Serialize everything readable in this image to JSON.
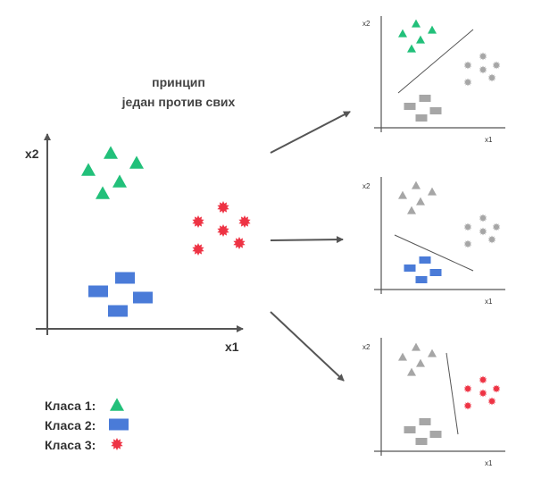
{
  "title": {
    "line1": "принцип",
    "line2": "један против свих"
  },
  "main_axes": {
    "x_label": "x1",
    "y_label": "x2"
  },
  "mini_axes": {
    "x_label": "x1",
    "y_label": "x2"
  },
  "legend": [
    {
      "label": "Класа 1:",
      "shape": "triangle",
      "color": "#22c07a"
    },
    {
      "label": "Класа 2:",
      "shape": "rectangle",
      "color": "#4a7bd8"
    },
    {
      "label": "Класа 3:",
      "shape": "star",
      "color": "#ee3344"
    }
  ],
  "colors": {
    "class1": "#22c07a",
    "class2": "#4a7bd8",
    "class3": "#ee3344",
    "rest": "#a6a6a6",
    "axis": "#555555"
  },
  "panels": [
    {
      "highlighted_class": 1
    },
    {
      "highlighted_class": 2
    },
    {
      "highlighted_class": 3
    }
  ]
}
